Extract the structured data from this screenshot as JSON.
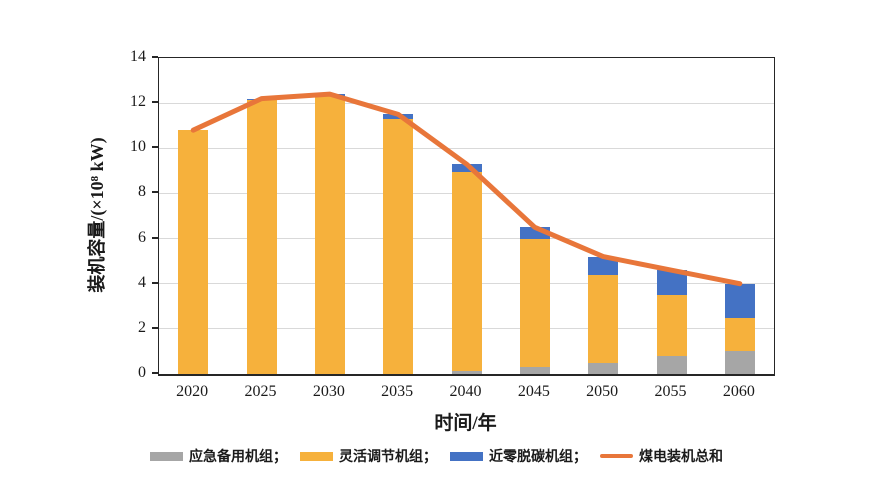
{
  "chart_data": {
    "type": "bar",
    "stacked": true,
    "title": "",
    "xlabel": "时间/年",
    "ylabel": "装机容量/(×10⁸ kW)",
    "categories": [
      "2020",
      "2025",
      "2030",
      "2035",
      "2040",
      "2045",
      "2050",
      "2055",
      "2060"
    ],
    "series": [
      {
        "name": "应急备用机组",
        "color": "#a6a6a6",
        "values": [
          0,
          0,
          0,
          0,
          0.15,
          0.3,
          0.5,
          0.8,
          1.0
        ]
      },
      {
        "name": "灵活调节机组",
        "color": "#f6b13c",
        "values": [
          10.8,
          12.15,
          12.3,
          11.3,
          8.8,
          5.7,
          3.9,
          2.7,
          1.5
        ]
      },
      {
        "name": "近零脱碳机组",
        "color": "#4472c4",
        "values": [
          0,
          0.05,
          0.1,
          0.2,
          0.35,
          0.5,
          0.8,
          1.1,
          1.5
        ]
      }
    ],
    "line_series": {
      "name": "煤电装机总和",
      "color": "#e8763a",
      "values": [
        10.8,
        12.2,
        12.4,
        11.5,
        9.3,
        6.5,
        5.2,
        4.6,
        4.0
      ]
    },
    "ylim": [
      0,
      14
    ],
    "ytick_step": 2,
    "yticks": [
      0,
      2,
      4,
      6,
      8,
      10,
      12,
      14
    ],
    "grid": true,
    "legend_position": "bottom"
  },
  "legend": {
    "items": [
      {
        "label": "应急备用机组；",
        "type": "box",
        "color": "#a6a6a6"
      },
      {
        "label": "灵活调节机组；",
        "type": "box",
        "color": "#f6b13c"
      },
      {
        "label": "近零脱碳机组；",
        "type": "box",
        "color": "#4472c4"
      },
      {
        "label": "煤电装机总和",
        "type": "line",
        "color": "#e8763a"
      }
    ]
  },
  "colors": {
    "grid": "#d9d9d9",
    "axis": "#262626",
    "background": "#ffffff"
  }
}
